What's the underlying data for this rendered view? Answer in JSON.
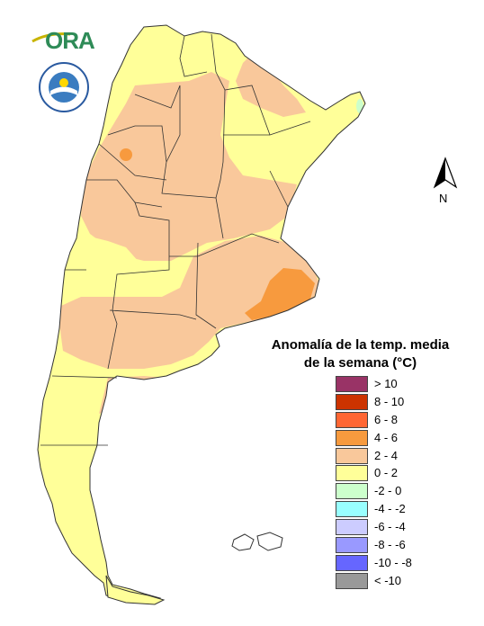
{
  "logo": {
    "text": "ORA"
  },
  "seal": {
    "text": "SERVICIO METEOROLÓGICO NACIONAL • ARGENTINA"
  },
  "north_arrow": {
    "label": "N"
  },
  "legend": {
    "title_line1": "Anomalía de la temp. media",
    "title_line2": "de la semana (°C)",
    "items": [
      {
        "label": "> 10",
        "color": "#993366"
      },
      {
        "label": "8 - 10",
        "color": "#cc3300"
      },
      {
        "label": "6 - 8",
        "color": "#ff6633"
      },
      {
        "label": "4 - 6",
        "color": "#f79a3e"
      },
      {
        "label": "2 - 4",
        "color": "#f9c89b"
      },
      {
        "label": "0 - 2",
        "color": "#ffff99"
      },
      {
        "label": "-2 - 0",
        "color": "#ccffcc"
      },
      {
        "label": "-4 - -2",
        "color": "#99ffff"
      },
      {
        "label": "-6 - -4",
        "color": "#ccccff"
      },
      {
        "label": "-8 - -6",
        "color": "#9999ff"
      },
      {
        "label": "-10 - -8",
        "color": "#6666ff"
      },
      {
        "label": "< -10",
        "color": "#999999"
      }
    ]
  },
  "map": {
    "colors": {
      "anomaly_0_2": "#ffff99",
      "anomaly_2_4": "#f9c89b",
      "anomaly_4_6": "#f79a3e",
      "anomaly_neg2_0": "#ccffcc",
      "border": "#333333"
    }
  }
}
